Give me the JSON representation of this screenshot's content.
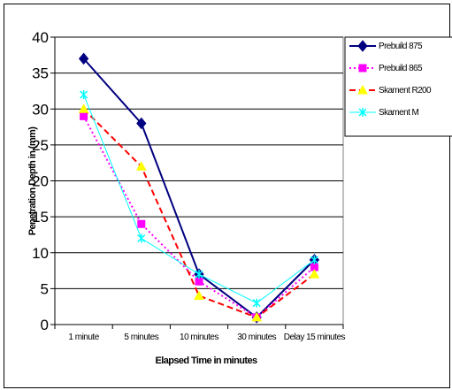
{
  "chart_data": {
    "type": "line",
    "categories": [
      "1 minute",
      "5 minutes",
      "10 minutes",
      "30 minutes",
      "Delay 15 minutes"
    ],
    "ylabel": "Penetration Depth in (mm)",
    "xlabel": "Elapsed Time in minutes",
    "ylim": [
      0,
      40
    ],
    "yticks": [
      "0",
      "5",
      "10",
      "15",
      "20",
      "25",
      "30",
      "35",
      "40"
    ],
    "grid": true,
    "legend_position": "right",
    "series": [
      {
        "name": "Prebuild 875",
        "values": [
          37,
          28,
          7,
          1,
          9
        ],
        "color": "#000080",
        "marker": "diamond",
        "dash": "solid",
        "width": 2
      },
      {
        "name": "Prebuild 865",
        "values": [
          29,
          14,
          6,
          1,
          8
        ],
        "color": "#ff00ff",
        "marker": "square",
        "dash": "dot",
        "width": 2
      },
      {
        "name": "Skament R200",
        "values": [
          30,
          22,
          4,
          1,
          7
        ],
        "color": "#ff0000",
        "marker": "triangle",
        "dash": "dash",
        "width": 2
      },
      {
        "name": "Skament M",
        "values": [
          32,
          12,
          7,
          3,
          9
        ],
        "color": "#00ffff",
        "marker": "star",
        "dash": "solid",
        "width": 1
      }
    ]
  }
}
